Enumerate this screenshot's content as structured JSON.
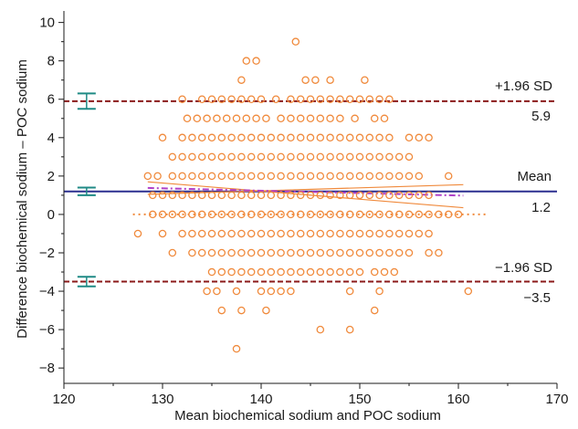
{
  "chart_data": {
    "type": "scatter",
    "xlabel": "Mean biochemical sodium and POC sodium",
    "ylabel": "Difference biochemical sodium – POC sodium",
    "xlim": [
      120,
      170
    ],
    "ylim": [
      -8.8,
      10.6
    ],
    "x_ticks": [
      "120",
      "130",
      "140",
      "150",
      "160",
      "170"
    ],
    "y_ticks": [
      "−8",
      "−6",
      "−4",
      "−2",
      "0",
      "2",
      "4",
      "6",
      "8",
      "10"
    ],
    "grid": false,
    "colors": {
      "points": "#f08a3c",
      "sd_lines": "#8b1a1a",
      "mean_line": "#2b2f8f",
      "trend": "#b040c8",
      "ci_bars": "#1f8a85",
      "zero_line": "#f08a3c"
    },
    "reference_lines": [
      {
        "label": "+1.96 SD",
        "value_label": "5.9",
        "y": 5.9,
        "style": "dashed"
      },
      {
        "label": "Mean",
        "value_label": "1.2",
        "y": 1.2,
        "style": "solid"
      },
      {
        "label": "−1.96 SD",
        "value_label": "−3.5",
        "y": -3.5,
        "style": "dashed"
      }
    ],
    "zero_line": {
      "y": 0,
      "x_range": [
        127,
        163
      ]
    },
    "trend_line": {
      "from": [
        128.5,
        1.38
      ],
      "to": [
        160.5,
        0.98
      ]
    },
    "trend_ci_upper": {
      "from": [
        128.5,
        1.05
      ],
      "to": [
        160.5,
        1.55
      ]
    },
    "trend_ci_lower": {
      "from": [
        128.5,
        1.7
      ],
      "to": [
        160.5,
        0.35
      ]
    },
    "ci_bars": [
      {
        "x": 122.3,
        "center": 5.9,
        "low": 5.5,
        "high": 6.3
      },
      {
        "x": 122.3,
        "center": 1.2,
        "low": 1.0,
        "high": 1.4
      },
      {
        "x": 122.3,
        "center": -3.5,
        "low": -3.75,
        "high": -3.25
      }
    ],
    "points": [
      {
        "y": 9,
        "x": [
          143.5
        ]
      },
      {
        "y": 8,
        "x": [
          138.5,
          139.5
        ]
      },
      {
        "y": 7,
        "x": [
          138,
          144.5,
          145.5,
          147,
          150.5
        ]
      },
      {
        "y": 6,
        "x": [
          132,
          134,
          135,
          136,
          137,
          138,
          139,
          140,
          141.5,
          143,
          144,
          145,
          146,
          147,
          148,
          149,
          150,
          151,
          152,
          153
        ]
      },
      {
        "y": 5,
        "x": [
          132.5,
          133.5,
          134.5,
          135.5,
          136.5,
          137.5,
          138.5,
          139.5,
          140.5,
          142,
          143,
          144,
          145,
          146,
          147,
          148,
          149.5,
          151.5,
          152.5
        ]
      },
      {
        "y": 4,
        "x": [
          130,
          132,
          133,
          134,
          135,
          136,
          137,
          138,
          139,
          140,
          141,
          142,
          143,
          144,
          145,
          146,
          147,
          148,
          149,
          150,
          151,
          152,
          153,
          155,
          156,
          157
        ]
      },
      {
        "y": 3,
        "x": [
          131,
          132,
          133,
          134,
          135,
          136,
          137,
          138,
          139,
          140,
          141,
          142,
          143,
          144,
          145,
          146,
          147,
          148,
          149,
          150,
          151,
          152,
          153,
          154,
          155
        ]
      },
      {
        "y": 2,
        "x": [
          128.5,
          129.5,
          131,
          132,
          133,
          134,
          135,
          136,
          137,
          138,
          139,
          140,
          141,
          142,
          143,
          144,
          145,
          146,
          147,
          148,
          149,
          150,
          151,
          152,
          153,
          154,
          155,
          156,
          159
        ]
      },
      {
        "y": 1,
        "x": [
          129,
          130,
          131,
          132,
          133,
          134,
          135,
          136,
          137,
          138,
          139,
          140,
          141,
          142,
          143,
          144,
          145,
          146,
          147,
          148,
          149,
          150,
          151,
          152,
          153,
          154,
          155,
          156,
          157
        ]
      },
      {
        "y": 0,
        "x": [
          129,
          130,
          131,
          132,
          133,
          134,
          135,
          136,
          137,
          138,
          139,
          140,
          141,
          142,
          143,
          144,
          145,
          146,
          147,
          148,
          149,
          150,
          151,
          152,
          153,
          154,
          155,
          156,
          157,
          158,
          159,
          160
        ]
      },
      {
        "y": -1,
        "x": [
          127.5,
          130,
          132,
          133,
          134,
          135,
          136,
          137,
          138,
          139,
          140,
          141,
          142,
          143,
          144,
          145,
          146,
          147,
          148,
          149,
          150,
          151,
          152,
          153,
          154,
          155,
          156,
          157
        ]
      },
      {
        "y": -2,
        "x": [
          131,
          133,
          134,
          135,
          136,
          137,
          138,
          139,
          140,
          141,
          142,
          143,
          144,
          145,
          146,
          147,
          148,
          149,
          150,
          151,
          152,
          153,
          154,
          155,
          157,
          158
        ]
      },
      {
        "y": -3,
        "x": [
          135,
          136,
          137,
          138,
          139,
          140,
          141,
          142,
          143,
          144,
          145,
          146,
          147,
          148,
          149,
          150,
          151.5,
          152.5,
          153.5
        ]
      },
      {
        "y": -4,
        "x": [
          134.5,
          135.5,
          137.5,
          140,
          141,
          142,
          143,
          149,
          152,
          161
        ]
      },
      {
        "y": -5,
        "x": [
          136,
          138,
          140.5,
          151.5
        ]
      },
      {
        "y": -6,
        "x": [
          146,
          149
        ]
      },
      {
        "y": -7,
        "x": [
          137.5
        ]
      }
    ]
  }
}
